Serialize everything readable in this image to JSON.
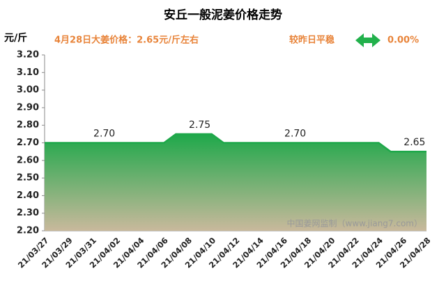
{
  "chart_data": {
    "type": "area",
    "title": "安丘一般泥姜价格走势",
    "y_label": "元/斤",
    "subtitle": "4月28日大姜价格：2.65元/斤左右",
    "change_text": "较昨日平稳",
    "change_value": "0.00%",
    "watermark": "中国姜网监制（www.jiang7.com）",
    "categories": [
      "21/03/27",
      null,
      "21/03/29",
      null,
      "21/03/31",
      null,
      "21/04/02",
      null,
      "21/04/04",
      null,
      "21/04/06",
      null,
      "21/04/08",
      null,
      "21/04/10",
      null,
      "21/04/12",
      null,
      "21/04/14",
      null,
      "21/04/16",
      null,
      "21/04/18",
      null,
      "21/04/20",
      null,
      "21/04/22",
      null,
      "21/04/24",
      null,
      "21/04/26",
      null,
      "21/04/28"
    ],
    "values": [
      2.7,
      2.7,
      2.7,
      2.7,
      2.7,
      2.7,
      2.7,
      2.7,
      2.7,
      2.7,
      2.7,
      2.75,
      2.75,
      2.75,
      2.75,
      2.7,
      2.7,
      2.7,
      2.7,
      2.7,
      2.7,
      2.7,
      2.7,
      2.7,
      2.7,
      2.7,
      2.7,
      2.7,
      2.7,
      2.65,
      2.65,
      2.65,
      2.65
    ],
    "value_labels": [
      null,
      null,
      null,
      null,
      null,
      "2.70",
      null,
      null,
      null,
      null,
      null,
      null,
      null,
      "2.75",
      null,
      null,
      null,
      null,
      null,
      null,
      null,
      "2.70",
      null,
      null,
      null,
      null,
      null,
      null,
      null,
      null,
      null,
      "2.65",
      null
    ],
    "color": "#1ea84a",
    "fill_bottom_color": "#c9b99c",
    "ylim": [
      2.2,
      3.2
    ],
    "yticks": [
      {
        "value": 2.2,
        "label": "2.20"
      },
      {
        "value": 2.3,
        "label": "2.30"
      },
      {
        "value": 2.4,
        "label": "2.40"
      },
      {
        "value": 2.5,
        "label": "2.50"
      },
      {
        "value": 2.6,
        "label": "2.60"
      },
      {
        "value": 2.7,
        "label": "2.70"
      },
      {
        "value": 2.8,
        "label": "2.80"
      },
      {
        "value": 2.9,
        "label": "2.90"
      },
      {
        "value": 3.0,
        "label": "3.00"
      },
      {
        "value": 3.1,
        "label": "3.10"
      },
      {
        "value": 3.2,
        "label": "3.20"
      }
    ],
    "grid": false
  }
}
